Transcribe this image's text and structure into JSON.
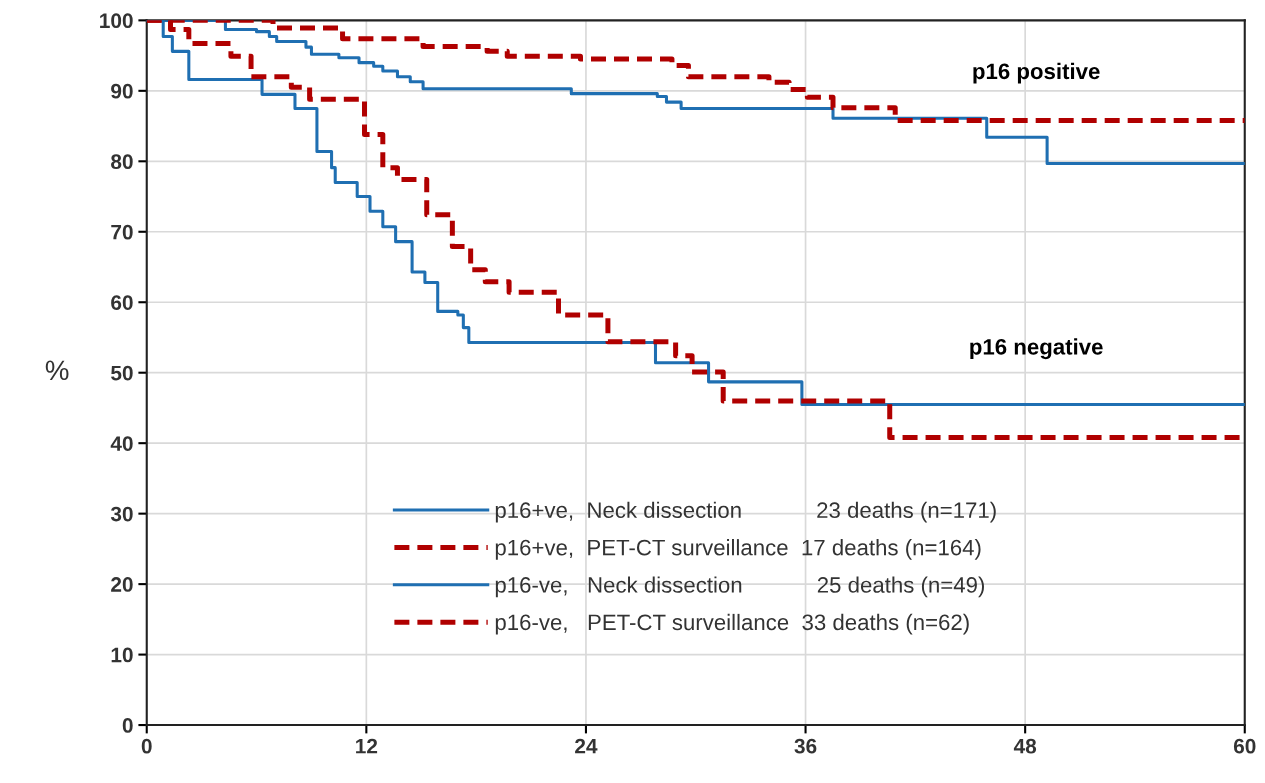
{
  "chart_data": {
    "type": "step",
    "ylabel": "%",
    "xlim": [
      0,
      60
    ],
    "ylim": [
      0,
      100
    ],
    "xticks": [
      0,
      12,
      24,
      36,
      48,
      60
    ],
    "yticks": [
      0,
      10,
      20,
      30,
      40,
      50,
      60,
      70,
      80,
      90,
      100
    ],
    "grid": true,
    "legend": "bottom",
    "annotations": [
      "p16 positive",
      "p16 negative"
    ],
    "series": [
      {
        "name": "p16+ve,  Neck dissection            23 deaths (n=171)",
        "color": "#1f6fb2",
        "line_style": "solid",
        "x": [
          0,
          4.3,
          6.0,
          6.7,
          7.1,
          8.7,
          9.0,
          10.5,
          11.6,
          12.4,
          12.9,
          13.7,
          14.4,
          15.1,
          23.2,
          27.9,
          28.4,
          29.2,
          37.5,
          45.9,
          49.2,
          60
        ],
        "values": [
          100,
          98.7,
          98.4,
          97.7,
          97.0,
          96.2,
          95.2,
          94.7,
          94.0,
          93.5,
          92.8,
          92.0,
          91.3,
          90.3,
          89.6,
          89.2,
          88.4,
          87.5,
          86.1,
          83.4,
          79.7,
          79.7
        ]
      },
      {
        "name": "p16+ve,  PET-CT surveillance  17 deaths (n=164)",
        "color": "#b00000",
        "line_style": "dashed",
        "x": [
          0,
          6.9,
          10.7,
          15.1,
          18.6,
          19.7,
          23.7,
          28.7,
          29.6,
          34.0,
          35.1,
          36.1,
          37.5,
          40.9,
          60
        ],
        "values": [
          100,
          98.9,
          97.4,
          96.3,
          95.6,
          94.9,
          94.5,
          93.6,
          92.0,
          91.2,
          90.2,
          89.1,
          87.6,
          85.8,
          85.8
        ]
      },
      {
        "name": "p16-ve,   Neck dissection            25 deaths (n=49)",
        "color": "#1f6fb2",
        "line_style": "solid",
        "x": [
          0,
          0.9,
          1.4,
          2.3,
          6.3,
          8.1,
          9.3,
          10.1,
          10.3,
          11.5,
          12.2,
          12.9,
          13.6,
          14.5,
          15.2,
          15.9,
          17.0,
          17.3,
          17.6,
          27.8,
          30.7,
          35.8,
          60
        ],
        "values": [
          100,
          97.7,
          95.6,
          91.6,
          89.5,
          87.5,
          81.4,
          79.1,
          77.0,
          75.0,
          72.9,
          70.7,
          68.6,
          64.3,
          62.8,
          58.7,
          58.2,
          56.4,
          54.3,
          51.4,
          48.7,
          45.5,
          45.5
        ]
      },
      {
        "name": "p16-ve,   PET-CT surveillance  33 deaths (n=62)",
        "color": "#b00000",
        "line_style": "dashed",
        "x": [
          0,
          1.3,
          2.3,
          4.6,
          5.7,
          7.9,
          8.9,
          11.9,
          12.9,
          13.7,
          15.3,
          16.7,
          17.7,
          18.5,
          19.8,
          22.5,
          25.2,
          28.9,
          29.8,
          31.5,
          40.6,
          60
        ],
        "values": [
          100,
          98.7,
          96.7,
          94.9,
          92.0,
          90.5,
          88.8,
          83.8,
          79.1,
          77.4,
          72.4,
          67.9,
          64.6,
          62.9,
          61.4,
          58.2,
          54.4,
          52.4,
          50.1,
          46.0,
          40.8,
          40.8
        ]
      }
    ]
  }
}
